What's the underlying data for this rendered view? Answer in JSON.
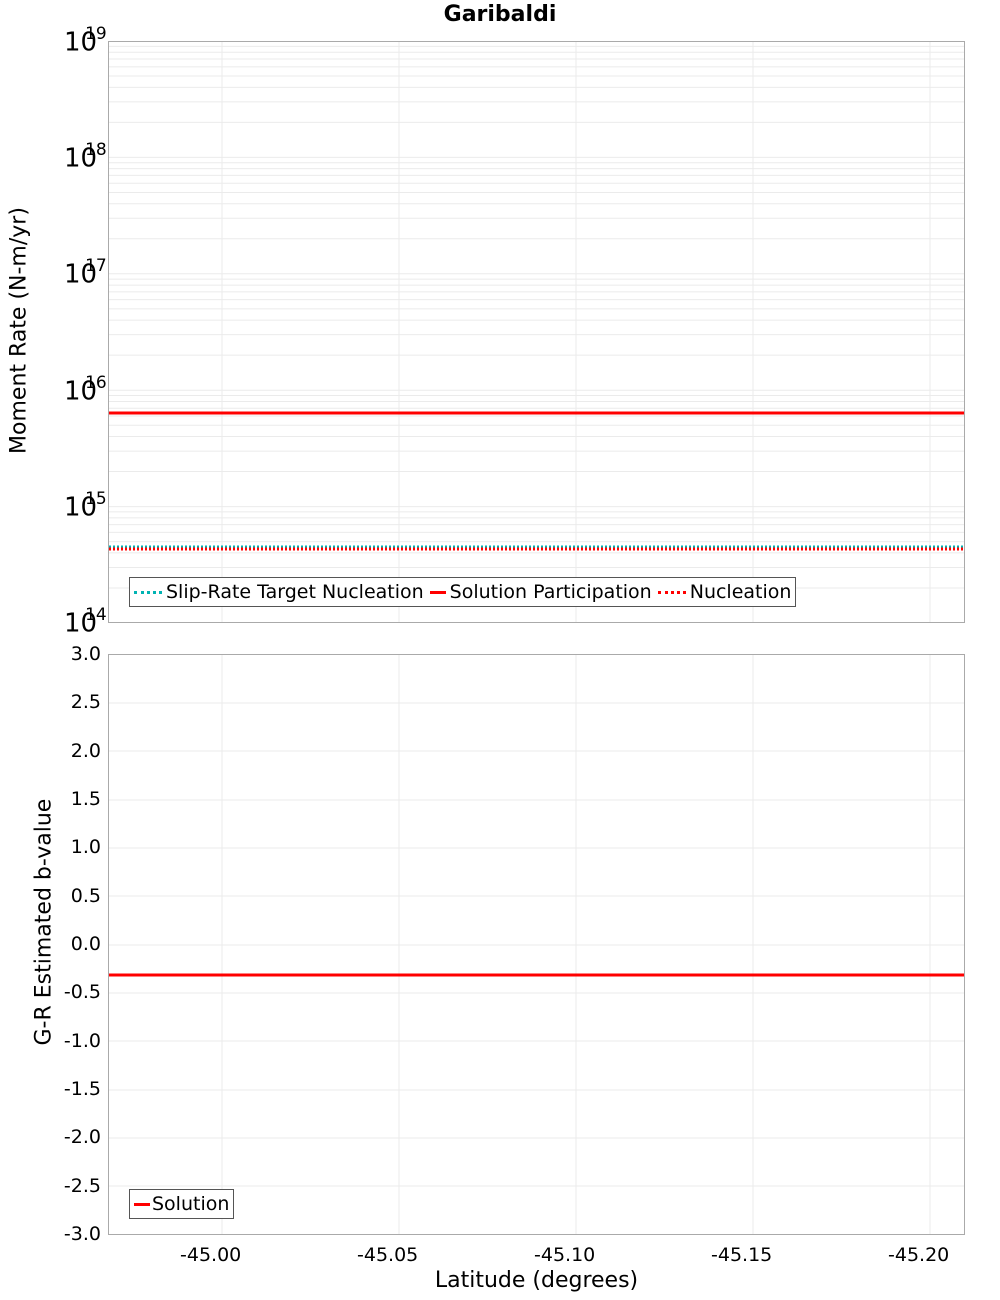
{
  "title": "Garibaldi",
  "chart_data": [
    {
      "type": "line",
      "title": "Garibaldi",
      "xlabel": "Latitude (degrees)",
      "ylabel": "Moment Rate (N-m/yr)",
      "yscale": "log",
      "ylim": [
        100000000000000.0,
        1e+19
      ],
      "xlim": [
        -44.968,
        -45.21
      ],
      "x_inverted": true,
      "ytick_labels": [
        "10^14",
        "10^15",
        "10^16",
        "10^17",
        "10^18",
        "10^19"
      ],
      "grid": true,
      "legend_position": "lower-left",
      "x": [
        -44.968,
        -45.047,
        -45.135,
        -45.21
      ],
      "series": [
        {
          "name": "Slip-Rate Target Nucleation",
          "style": "dotted",
          "color": "#00b3b3",
          "values": [
            440000000000000.0,
            440000000000000.0,
            440000000000000.0,
            440000000000000.0
          ]
        },
        {
          "name": "Solution Participation",
          "style": "solid",
          "color": "#ff0000",
          "values": [
            6300000000000000.0,
            6300000000000000.0,
            6300000000000000.0,
            6300000000000000.0
          ]
        },
        {
          "name": "Nucleation",
          "style": "dotted",
          "color": "#ff0000",
          "values": [
            430000000000000.0,
            430000000000000.0,
            430000000000000.0,
            430000000000000.0
          ]
        }
      ]
    },
    {
      "type": "line",
      "xlabel": "Latitude (degrees)",
      "ylabel": "G-R Estimated b-value",
      "ylim": [
        -3.0,
        3.0
      ],
      "xlim": [
        -44.968,
        -45.21
      ],
      "x_inverted": true,
      "xtick_labels": [
        "-45.00",
        "-45.05",
        "-45.10",
        "-45.15",
        "-45.20"
      ],
      "ytick_labels": [
        "3.0",
        "2.5",
        "2.0",
        "1.5",
        "1.0",
        "0.5",
        "0.0",
        "-0.5",
        "-1.0",
        "-1.5",
        "-2.0",
        "-2.5",
        "-3.0"
      ],
      "grid": true,
      "legend_position": "lower-left",
      "x": [
        -44.968,
        -45.21
      ],
      "series": [
        {
          "name": "Solution",
          "style": "solid",
          "color": "#ff0000",
          "values": [
            -0.32,
            -0.32
          ]
        }
      ]
    }
  ],
  "top": {
    "ylabel": "Moment Rate (N-m/yr)",
    "yticks": [
      {
        "base": "10",
        "exp": "19"
      },
      {
        "base": "10",
        "exp": "18"
      },
      {
        "base": "10",
        "exp": "17"
      },
      {
        "base": "10",
        "exp": "16"
      },
      {
        "base": "10",
        "exp": "15"
      },
      {
        "base": "10",
        "exp": "14"
      }
    ],
    "legend": [
      "Slip-Rate Target Nucleation",
      "Solution Participation",
      "Nucleation"
    ]
  },
  "bottom": {
    "ylabel": "G-R Estimated b-value",
    "yticks": [
      "3.0",
      "2.5",
      "2.0",
      "1.5",
      "1.0",
      "0.5",
      "0.0",
      "-0.5",
      "-1.0",
      "-1.5",
      "-2.0",
      "-2.5",
      "-3.0"
    ],
    "legend": [
      "Solution"
    ],
    "xticks": [
      "-45.00",
      "-45.05",
      "-45.10",
      "-45.15",
      "-45.20"
    ],
    "xlabel": "Latitude (degrees)"
  }
}
